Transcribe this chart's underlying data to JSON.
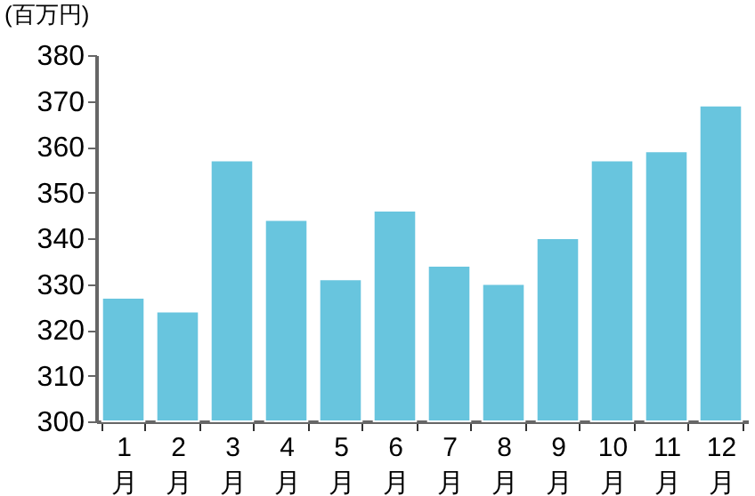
{
  "chart_data": {
    "type": "bar",
    "ylabel": "(百万円)",
    "categories": [
      "1\n月",
      "2\n月",
      "3\n月",
      "4\n月",
      "5\n月",
      "6\n月",
      "7\n月",
      "8\n月",
      "9\n月",
      "10\n月",
      "11\n月",
      "12\n月"
    ],
    "values": [
      327,
      324,
      357,
      344,
      331,
      346,
      334,
      330,
      340,
      357,
      359,
      369
    ],
    "color": "#68c5de",
    "ylim": [
      300,
      380
    ],
    "yticks": [
      300,
      310,
      320,
      330,
      340,
      350,
      360,
      370,
      380
    ],
    "grid": false
  }
}
